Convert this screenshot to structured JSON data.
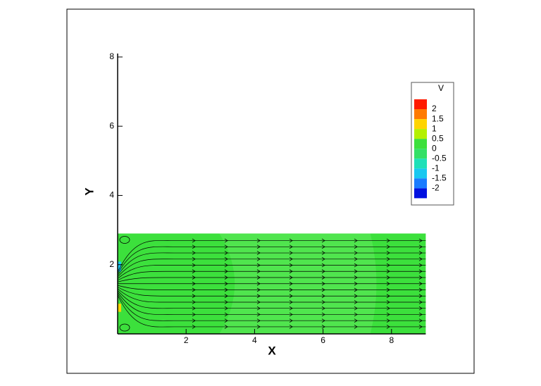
{
  "chart_data": {
    "type": "contour",
    "x_label": "X",
    "y_label": "Y",
    "xlim": [
      0,
      9
    ],
    "ylim": [
      0,
      8.1
    ],
    "xticks": [
      2,
      4,
      6,
      8
    ],
    "yticks": [
      2,
      4,
      6,
      8
    ],
    "domain": {
      "xlim": [
        0,
        9
      ],
      "ylim": [
        0,
        2.9
      ]
    },
    "legend": {
      "title": "V",
      "levels": [
        2,
        1.5,
        1,
        0.5,
        0,
        -0.5,
        -1,
        -1.5,
        -2
      ],
      "colors": [
        "#ff1a00",
        "#ff7a00",
        "#ffd400",
        "#b4f000",
        "#3ce03c",
        "#33e066",
        "#1ee0b8",
        "#18c8f0",
        "#1a7cff",
        "#0010e0"
      ]
    }
  }
}
